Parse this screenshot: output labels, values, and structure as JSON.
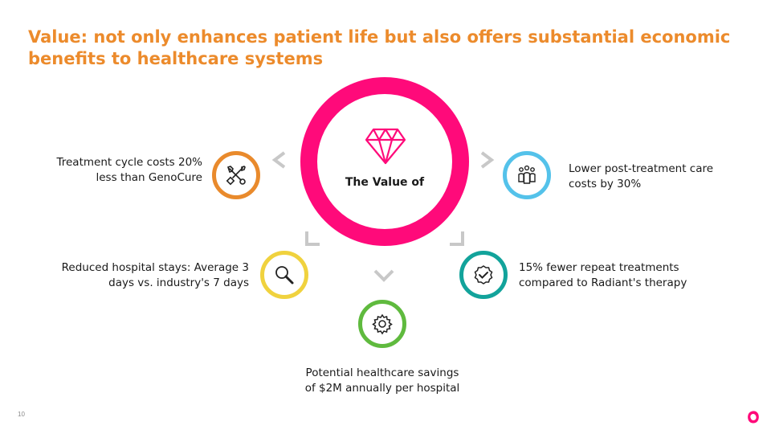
{
  "slide": {
    "title_line1": "Value:  not only enhances patient life but also offers substantial economic",
    "title_line2": "benefits to healthcare systems",
    "page_number": "10"
  },
  "hub": {
    "label": "The Value of",
    "icon": "diamond-icon",
    "color": "#ff0a7a"
  },
  "benefits": [
    {
      "id": "cost",
      "line1": "Treatment cycle costs 20%",
      "line2": "less than GenoCure",
      "icon": "tools-icon",
      "color": "#e98a2c"
    },
    {
      "id": "stay",
      "line1": "Reduced hospital stays: Average 3",
      "line2": "days vs. industry's 7 days",
      "icon": "search-icon",
      "color": "#f0d23e"
    },
    {
      "id": "savings",
      "line1": "Potential healthcare savings",
      "line2": "of $2M annually per hospital",
      "icon": "gear-icon",
      "color": "#5fba3e"
    },
    {
      "id": "repeat",
      "line1": "15% fewer repeat treatments",
      "line2": "compared to Radiant's therapy",
      "icon": "check-badge-icon",
      "color": "#12a39b"
    },
    {
      "id": "care",
      "line1": "Lower post-treatment care",
      "line2": "costs by 30%",
      "icon": "people-icon",
      "color": "#54c2ea"
    }
  ]
}
